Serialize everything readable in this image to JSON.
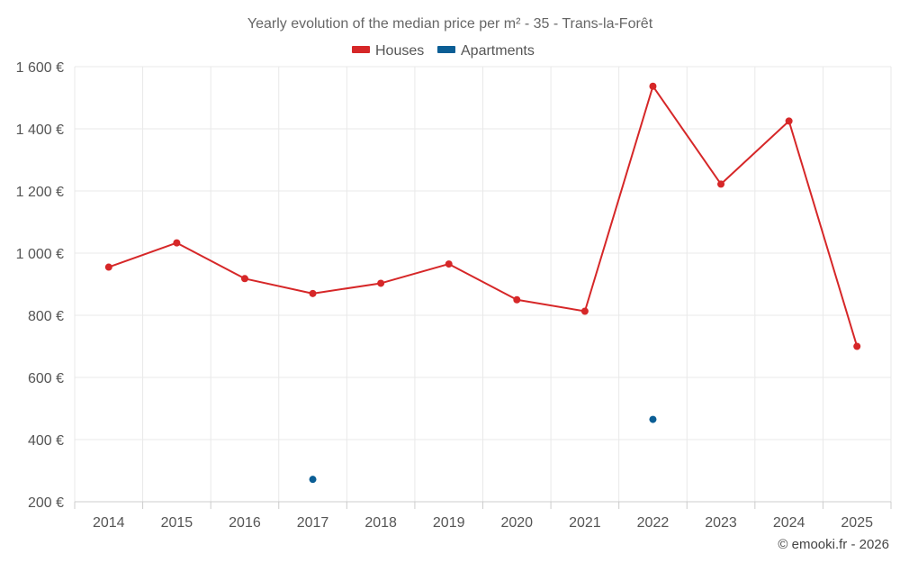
{
  "chart_data": {
    "type": "line",
    "title": "Yearly evolution of the median price per m² - 35 - Trans-la-Forêt",
    "categories": [
      "2014",
      "2015",
      "2016",
      "2017",
      "2018",
      "2019",
      "2020",
      "2021",
      "2022",
      "2023",
      "2024",
      "2025"
    ],
    "y_ticks": [
      "200 €",
      "400 €",
      "600 €",
      "800 €",
      "1 000 €",
      "1 200 €",
      "1 400 €",
      "1 600 €"
    ],
    "ylim": [
      200,
      1600
    ],
    "y_tick_values": [
      200,
      400,
      600,
      800,
      1000,
      1200,
      1400,
      1600
    ],
    "legend_position": "top-center",
    "grid": true,
    "series": [
      {
        "name": "Houses",
        "color": "#d62728",
        "values": [
          955,
          1033,
          918,
          870,
          903,
          965,
          850,
          813,
          1537,
          1222,
          1425,
          700
        ]
      },
      {
        "name": "Apartments",
        "color": "#0b5e95",
        "values": [
          null,
          null,
          null,
          272,
          null,
          null,
          null,
          null,
          465,
          null,
          null,
          null
        ]
      }
    ],
    "credit": "© emooki.fr - 2026"
  }
}
